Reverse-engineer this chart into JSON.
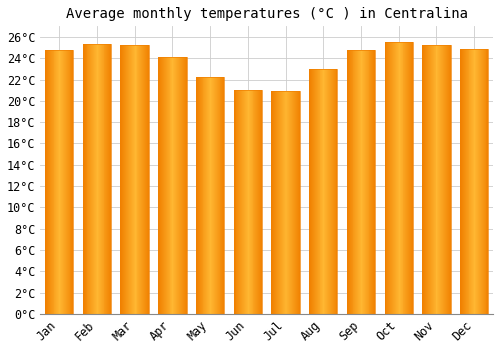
{
  "title": "Average monthly temperatures (°C ) in Centralina",
  "months": [
    "Jan",
    "Feb",
    "Mar",
    "Apr",
    "May",
    "Jun",
    "Jul",
    "Aug",
    "Sep",
    "Oct",
    "Nov",
    "Dec"
  ],
  "values": [
    24.8,
    25.3,
    25.2,
    24.1,
    22.2,
    21.0,
    20.9,
    23.0,
    24.8,
    25.5,
    25.2,
    24.9
  ],
  "bar_color_center": "#FFB732",
  "bar_color_edge": "#F08000",
  "background_color": "#FFFFFF",
  "grid_color": "#CCCCCC",
  "ylim": [
    0,
    27
  ],
  "yticks": [
    0,
    2,
    4,
    6,
    8,
    10,
    12,
    14,
    16,
    18,
    20,
    22,
    24,
    26
  ],
  "title_fontsize": 10,
  "tick_fontsize": 8.5,
  "bar_width": 0.75
}
